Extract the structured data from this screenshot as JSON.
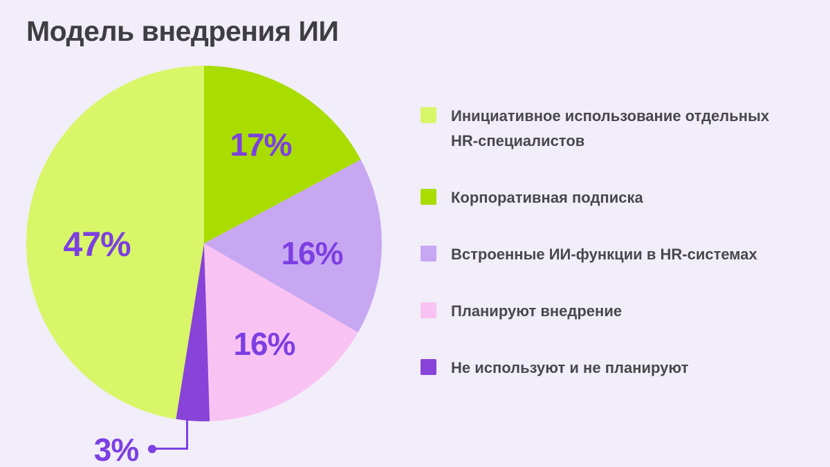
{
  "page": {
    "title": "Модель внедрения ИИ",
    "background": "#f1edf9",
    "title_color": "#3e3e42",
    "legend_text_color": "#48484c"
  },
  "chart_data": {
    "type": "pie",
    "title": "Модель внедрения ИИ",
    "unit": "percent",
    "values_total_shown": 99,
    "start_angle_deg": -90,
    "direction": "clockwise",
    "draw_order": [
      1,
      2,
      3,
      4,
      0
    ],
    "label_color": "#7c3fe2",
    "legend_position": "right",
    "slices": [
      {
        "id": "initiative-individual-hr",
        "label": "Инициативное использование отдельных HR-специалистов",
        "value": 47,
        "display": "47%",
        "color": "#d8f667"
      },
      {
        "id": "corporate-subscription",
        "label": "Корпоративная подписка",
        "value": 17,
        "display": "17%",
        "color": "#a9dc00"
      },
      {
        "id": "builtin-ai-hr-systems",
        "label": "Встроенные ИИ-функции в HR-системах",
        "value": 16,
        "display": "16%",
        "color": "#c8a7f2"
      },
      {
        "id": "planning-implementation",
        "label": "Планируют внедрение",
        "value": 16,
        "display": "16%",
        "color": "#f8c3f2"
      },
      {
        "id": "not-using-not-planning",
        "label": "Не используют и не планируют",
        "value": 3,
        "display": "3%",
        "color": "#8843d8",
        "callout": true
      }
    ]
  }
}
